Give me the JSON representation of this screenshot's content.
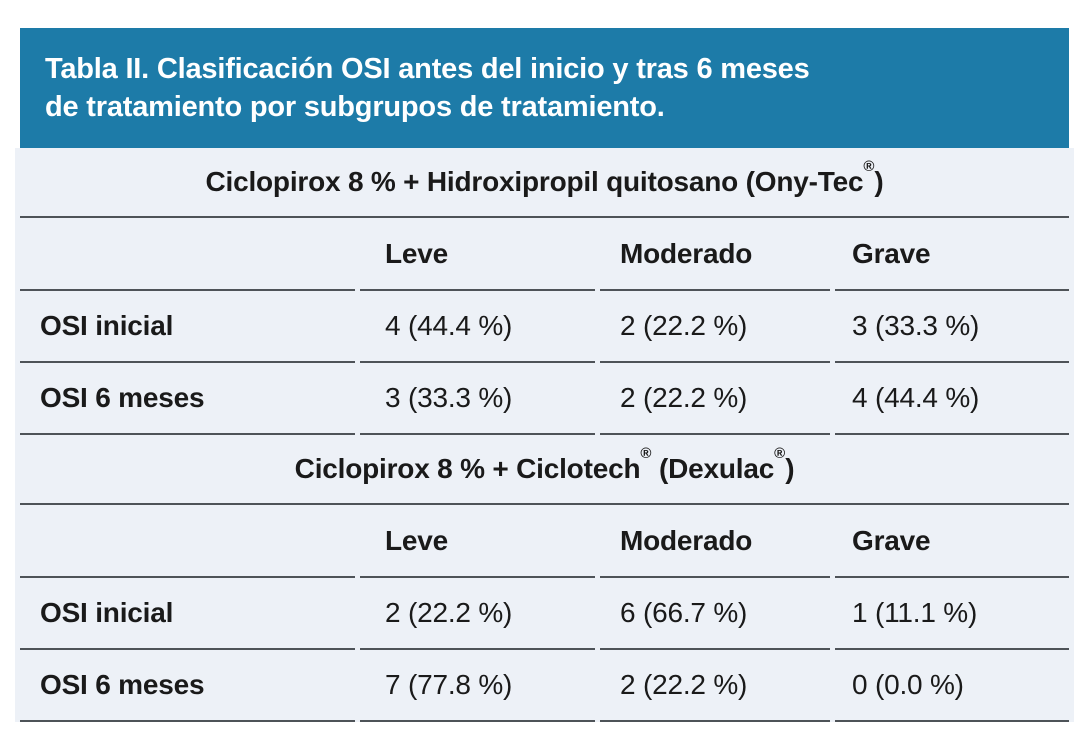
{
  "chart_data": {
    "type": "table",
    "title": "Tabla II. Clasificación OSI antes del inicio y tras 6 meses de tratamiento por subgrupos de tratamiento.",
    "title_lines": [
      "Tabla II. Clasificación OSI antes del inicio y tras 6 meses",
      "de tratamiento por subgrupos de tratamiento."
    ],
    "columns": [
      "",
      "Leve",
      "Moderado",
      "Grave"
    ],
    "groups": [
      {
        "group_label": "Ciclopirox 8 % + Hidroxipropil quitosano (Ony-Tec®)",
        "group_label_parts": [
          {
            "text": "Ciclopirox 8 % + Hidroxipropil quitosano (Ony-Tec"
          },
          {
            "sup": "®"
          },
          {
            "text": ")"
          }
        ],
        "rows": [
          {
            "label": "OSI inicial",
            "values": [
              "4 (44.4 %)",
              "2 (22.2 %)",
              "3 (33.3 %)"
            ]
          },
          {
            "label": "OSI 6 meses",
            "values": [
              "3 (33.3 %)",
              "2 (22.2 %)",
              "4 (44.4 %)"
            ]
          }
        ]
      },
      {
        "group_label": "Ciclopirox 8 % + Ciclotech® (Dexulac®)",
        "group_label_parts": [
          {
            "text": "Ciclopirox 8 % + Ciclotech"
          },
          {
            "sup": "®"
          },
          {
            "text": " (Dexulac"
          },
          {
            "sup2": "®"
          },
          {
            "text2": ")"
          }
        ],
        "rows": [
          {
            "label": "OSI inicial",
            "values": [
              "2 (22.2 %)",
              "6 (66.7 %)",
              "1 (11.1 %)"
            ]
          },
          {
            "label": "OSI 6 meses",
            "values": [
              "7 (77.8 %)",
              "2 (22.2 %)",
              "0 (0.0 %)"
            ]
          }
        ]
      }
    ],
    "colors": {
      "header_bg": "#1d7ba8",
      "header_text": "#ffffff",
      "body_bg": "#edf1f7",
      "line": "#4e5358",
      "text": "#1a1a1a",
      "page_bg": "#ffffff"
    },
    "layout": {
      "legend": "none",
      "grid": "horizontal-rules"
    }
  }
}
